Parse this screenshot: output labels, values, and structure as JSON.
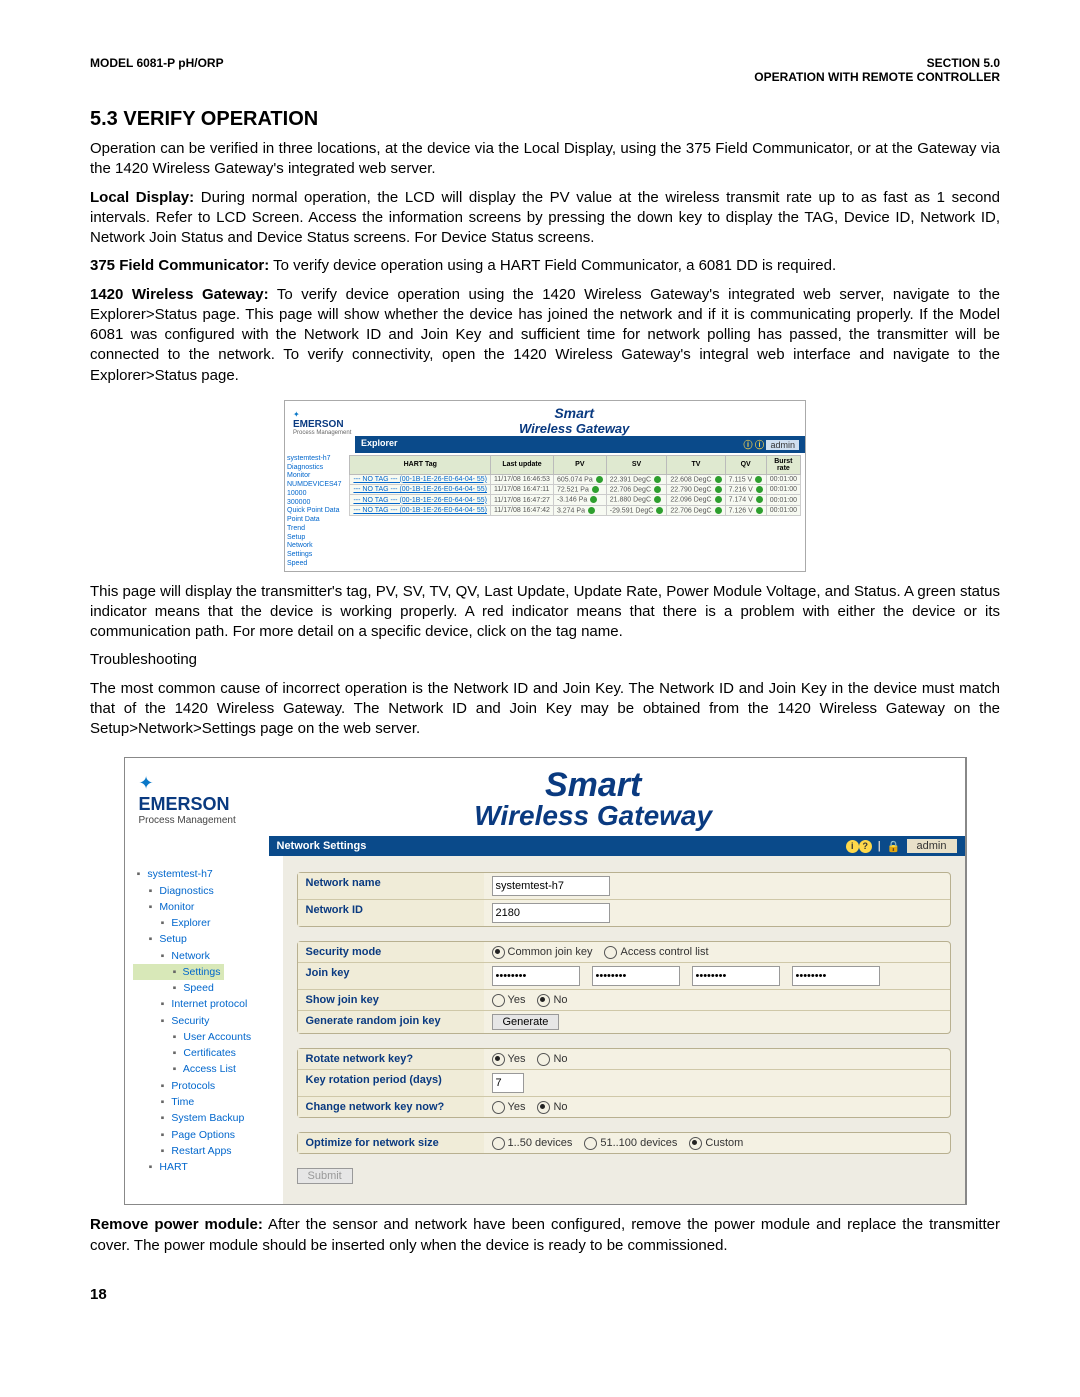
{
  "header": {
    "left": "MODEL 6081-P pH/ORP",
    "right1": "SECTION 5.0",
    "right2": "OPERATION WITH REMOTE CONTROLLER"
  },
  "section_title": "5.3 VERIFY OPERATION",
  "para_intro": "Operation can be verified in three locations, at the device via the Local Display, using the 375 Field Communicator, or at the Gateway via the 1420 Wireless Gateway's integrated web server.",
  "local_label": "Local Display:",
  "local_text": " During normal operation, the LCD will display the PV value at the wireless transmit rate up to as fast as 1 second intervals. Refer to LCD Screen. Access the information screens by pressing the down key to display the TAG, Device ID, Network ID, Network Join Status and Device Status screens. For Device Status screens.",
  "fc_label": "375 Field Communicator:",
  "fc_text": " To verify device operation using a HART Field Communicator, a 6081 DD is required.",
  "gw_label": "1420 Wireless Gateway:",
  "gw_text": " To verify device operation using the 1420 Wireless Gateway's integrated web server, navigate to the Explorer>Status page. This page will show whether the device has joined the network and if it is communicating properly. If the Model 6081 was configured with the Network ID and Join Key and sufficient time for network polling has passed, the transmitter will be connected to the network. To verify connectivity, open the 1420 Wireless Gateway's integral web interface and navigate to the Explorer>Status page.",
  "shot1": {
    "logo": "EMERSON",
    "sub": "Process Management",
    "title1": "Smart",
    "title2": "Wireless Gateway",
    "bar_left": "Explorer",
    "bar_right": "admin",
    "nav": [
      "systemtest-h7",
      "Diagnostics",
      "Monitor",
      "NUMDEVICES47",
      "10000",
      "300000",
      "Quick Point Data",
      "Point Data",
      "Trend",
      "",
      "Setup",
      "Network",
      "Settings",
      "Speed"
    ],
    "columns": [
      "HART Tag",
      "Last update",
      "PV",
      "SV",
      "TV",
      "QV",
      "Burst rate"
    ],
    "rows": [
      {
        "tag": "--- NO TAG --- (00-1B-1E-26-E0-64-04-\n55)",
        "lu": "11/17/08\n16:46:53",
        "pv": "605.074 Pa",
        "sv": "22.391 DegC",
        "tv": "22.608 DegC",
        "qv": "7.115 V",
        "br": "00:01:00"
      },
      {
        "tag": "--- NO TAG --- (00-1B-1E-26-E0-64-04-\n55)",
        "lu": "11/17/08\n16:47:11",
        "pv": "72.521 Pa",
        "sv": "22.706 DegC",
        "tv": "22.790 DegC",
        "qv": "7.216 V",
        "br": "00:01:00"
      },
      {
        "tag": "--- NO TAG --- (00-1B-1E-26-E0-64-04-\n55)",
        "lu": "11/17/08\n16:47:27",
        "pv": "-3.146 Pa",
        "sv": "21.880 DegC",
        "tv": "22.096 DegC",
        "qv": "7.174 V",
        "br": "00:01:00"
      },
      {
        "tag": "--- NO TAG --- (00-1B-1E-26-E0-64-04-\n55)",
        "lu": "11/17/08\n16:47:42",
        "pv": "3.274 Pa",
        "sv": "-29.591 DegC",
        "tv": "22.706 DegC",
        "qv": "7.126 V",
        "br": "00:01:00"
      }
    ]
  },
  "para_after1": "This page will display the transmitter's tag, PV, SV, TV, QV, Last Update, Update Rate, Power Module Voltage, and Status. A green status indicator means that the device is working properly. A red indicator means that there is a problem with either the device or its communication path. For more detail on a specific device, click on the tag name.",
  "troubleshoot_h": "Troubleshooting",
  "troubleshoot_p": "The most common cause of incorrect operation is the Network ID and Join Key. The Network ID and Join Key in the device must match that of the 1420 Wireless Gateway. The Network ID and Join Key may be obtained from the 1420 Wireless Gateway on the Setup>Network>Settings page on the web server.",
  "shot2": {
    "logo": "EMERSON",
    "sub": "Process Management",
    "title1": "Smart",
    "title2": "Wireless Gateway",
    "bar_title": "Network Settings",
    "bar_admin": "admin",
    "nav": [
      {
        "t": "systemtest-h7",
        "cls": "root"
      },
      {
        "t": "Diagnostics",
        "cls": "ind1"
      },
      {
        "t": "Monitor",
        "cls": "ind1"
      },
      {
        "t": "Explorer",
        "cls": "ind2"
      },
      {
        "t": "Setup",
        "cls": "ind1"
      },
      {
        "t": "Network",
        "cls": "ind2"
      },
      {
        "t": "Settings",
        "cls": "ind3 sel"
      },
      {
        "t": "Speed",
        "cls": "ind3"
      },
      {
        "t": "Internet protocol",
        "cls": "ind2"
      },
      {
        "t": "Security",
        "cls": "ind2"
      },
      {
        "t": "User Accounts",
        "cls": "ind3"
      },
      {
        "t": "Certificates",
        "cls": "ind3"
      },
      {
        "t": "Access List",
        "cls": "ind3"
      },
      {
        "t": "Protocols",
        "cls": "ind2"
      },
      {
        "t": "Time",
        "cls": "ind2"
      },
      {
        "t": "System Backup",
        "cls": "ind2"
      },
      {
        "t": "Page Options",
        "cls": "ind2"
      },
      {
        "t": "Restart Apps",
        "cls": "ind2"
      },
      {
        "t": "HART",
        "cls": "ind1"
      }
    ],
    "labels": {
      "netname": "Network name",
      "netid": "Network ID",
      "secmode": "Security mode",
      "joinkey": "Join key",
      "showjoin": "Show join key",
      "genjoin": "Generate random join key",
      "rotate": "Rotate network key?",
      "rotperiod": "Key rotation period (days)",
      "changekey": "Change network key now?",
      "optimize": "Optimize for network size"
    },
    "values": {
      "netname": "systemtest-h7",
      "netid": "2180",
      "rotperiod": "7"
    },
    "opts": {
      "sec_common": "Common join key",
      "sec_acl": "Access control list",
      "yes": "Yes",
      "no": "No",
      "gen": "Generate",
      "size1": "1..50 devices",
      "size2": "51..100 devices",
      "size3": "Custom",
      "submit": "Submit"
    }
  },
  "remove_label": "Remove power module:",
  "remove_text": " After the sensor and network have been configured, remove the power module and replace the transmitter cover. The power module should be inserted only when the device is ready to be commissioned.",
  "page_num": "18"
}
